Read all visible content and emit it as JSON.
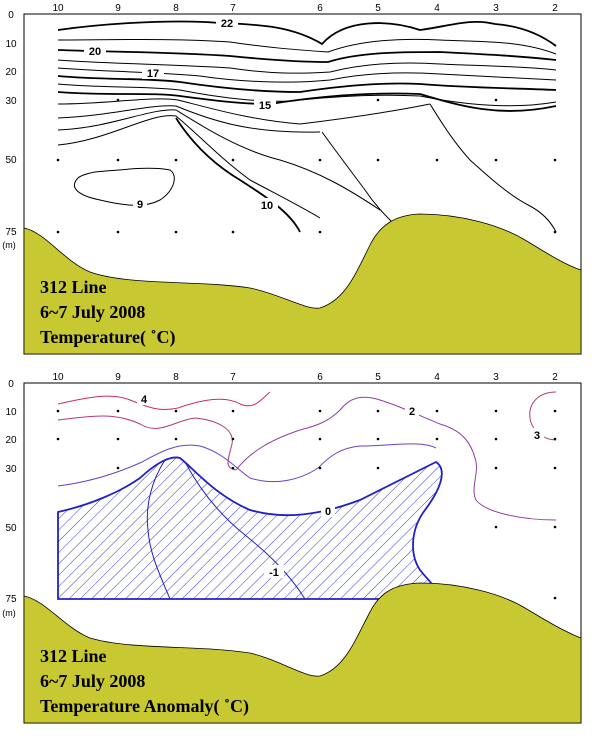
{
  "chart_data": [
    {
      "type": "contour",
      "title_lines": [
        "312 Line",
        "6~7 July 2008",
        "Temperature( ˚C)"
      ],
      "x_ticks": [
        "10",
        "9",
        "8",
        "7",
        "6",
        "5",
        "4",
        "3",
        "2"
      ],
      "y_ticks": [
        "0",
        "10",
        "20",
        "30",
        "50",
        "75"
      ],
      "y_unit": "(m)",
      "contour_labels": [
        "22",
        "20",
        "17",
        "15",
        "10",
        "9"
      ],
      "contour_color": "#000000",
      "bottom_color": "#c8c832"
    },
    {
      "type": "contour",
      "title_lines": [
        "312 Line",
        "6~7 July 2008",
        "Temperature Anomaly( ˚C)"
      ],
      "x_ticks": [
        "10",
        "9",
        "8",
        "7",
        "6",
        "5",
        "4",
        "3",
        "2"
      ],
      "y_ticks": [
        "0",
        "10",
        "20",
        "30",
        "50",
        "75"
      ],
      "y_unit": "(m)",
      "contour_labels": [
        "4",
        "2",
        "3",
        "0",
        "-1"
      ],
      "negative_hatch_color": "#3a3acc",
      "bottom_color": "#c8c832"
    }
  ]
}
